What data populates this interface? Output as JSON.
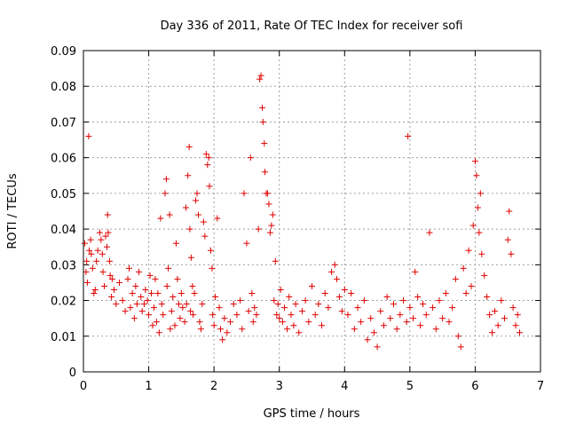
{
  "chart_data": {
    "type": "scatter",
    "title": "Day 336 of 2011, Rate Of TEC Index for receiver sofi",
    "xlabel": "GPS time / hours",
    "ylabel": "ROTI / TECUs",
    "xlim": [
      0,
      7
    ],
    "ylim": [
      0,
      0.09
    ],
    "grid": true,
    "x_ticks": [
      0,
      1,
      2,
      3,
      4,
      5,
      6,
      7
    ],
    "x_tick_labels": [
      "0",
      "1",
      "2",
      "3",
      "4",
      "5",
      "6",
      "7"
    ],
    "y_ticks": [
      0,
      0.01,
      0.02,
      0.03,
      0.04,
      0.05,
      0.06,
      0.07,
      0.08,
      0.09
    ],
    "y_tick_labels": [
      "0",
      "0.01",
      "0.02",
      "0.03",
      "0.04",
      "0.05",
      "0.06",
      "0.07",
      "0.08",
      "0.09"
    ],
    "marker": "+",
    "color": "#e00000",
    "series": [
      {
        "name": "ROTI",
        "points": [
          [
            0.02,
            0.036
          ],
          [
            0.04,
            0.028
          ],
          [
            0.05,
            0.031
          ],
          [
            0.06,
            0.025
          ],
          [
            0.08,
            0.066
          ],
          [
            0.09,
            0.034
          ],
          [
            0.11,
            0.037
          ],
          [
            0.12,
            0.033
          ],
          [
            0.14,
            0.029
          ],
          [
            0.16,
            0.022
          ],
          [
            0.18,
            0.023
          ],
          [
            0.2,
            0.031
          ],
          [
            0.22,
            0.034
          ],
          [
            0.25,
            0.039
          ],
          [
            0.27,
            0.037
          ],
          [
            0.29,
            0.033
          ],
          [
            0.3,
            0.028
          ],
          [
            0.32,
            0.024
          ],
          [
            0.34,
            0.038
          ],
          [
            0.36,
            0.035
          ],
          [
            0.37,
            0.044
          ],
          [
            0.38,
            0.039
          ],
          [
            0.4,
            0.031
          ],
          [
            0.41,
            0.027
          ],
          [
            0.43,
            0.021
          ],
          [
            0.44,
            0.026
          ],
          [
            0.47,
            0.023
          ],
          [
            0.5,
            0.019
          ],
          [
            0.55,
            0.025
          ],
          [
            0.6,
            0.02
          ],
          [
            0.64,
            0.017
          ],
          [
            0.68,
            0.026
          ],
          [
            0.7,
            0.029
          ],
          [
            0.72,
            0.018
          ],
          [
            0.75,
            0.022
          ],
          [
            0.78,
            0.015
          ],
          [
            0.8,
            0.024
          ],
          [
            0.82,
            0.019
          ],
          [
            0.85,
            0.028
          ],
          [
            0.88,
            0.021
          ],
          [
            0.9,
            0.017
          ],
          [
            0.93,
            0.019
          ],
          [
            0.95,
            0.023
          ],
          [
            0.98,
            0.02
          ],
          [
            1.0,
            0.016
          ],
          [
            1.02,
            0.027
          ],
          [
            1.04,
            0.022
          ],
          [
            1.06,
            0.013
          ],
          [
            1.08,
            0.018
          ],
          [
            1.1,
            0.026
          ],
          [
            1.12,
            0.014
          ],
          [
            1.14,
            0.022
          ],
          [
            1.16,
            0.011
          ],
          [
            1.18,
            0.043
          ],
          [
            1.2,
            0.019
          ],
          [
            1.22,
            0.016
          ],
          [
            1.25,
            0.05
          ],
          [
            1.27,
            0.054
          ],
          [
            1.28,
            0.024
          ],
          [
            1.3,
            0.029
          ],
          [
            1.32,
            0.044
          ],
          [
            1.33,
            0.012
          ],
          [
            1.35,
            0.017
          ],
          [
            1.37,
            0.021
          ],
          [
            1.4,
            0.013
          ],
          [
            1.42,
            0.036
          ],
          [
            1.44,
            0.026
          ],
          [
            1.46,
            0.019
          ],
          [
            1.48,
            0.015
          ],
          [
            1.5,
            0.022
          ],
          [
            1.52,
            0.018
          ],
          [
            1.55,
            0.014
          ],
          [
            1.57,
            0.046
          ],
          [
            1.58,
            0.019
          ],
          [
            1.6,
            0.055
          ],
          [
            1.62,
            0.063
          ],
          [
            1.63,
            0.04
          ],
          [
            1.64,
            0.017
          ],
          [
            1.65,
            0.032
          ],
          [
            1.67,
            0.024
          ],
          [
            1.68,
            0.016
          ],
          [
            1.7,
            0.022
          ],
          [
            1.72,
            0.048
          ],
          [
            1.74,
            0.05
          ],
          [
            1.76,
            0.044
          ],
          [
            1.78,
            0.014
          ],
          [
            1.8,
            0.012
          ],
          [
            1.82,
            0.019
          ],
          [
            1.84,
            0.042
          ],
          [
            1.86,
            0.038
          ],
          [
            1.88,
            0.061
          ],
          [
            1.9,
            0.058
          ],
          [
            1.92,
            0.06
          ],
          [
            1.93,
            0.052
          ],
          [
            1.95,
            0.034
          ],
          [
            1.97,
            0.029
          ],
          [
            1.98,
            0.016
          ],
          [
            2.0,
            0.013
          ],
          [
            2.02,
            0.021
          ],
          [
            2.05,
            0.043
          ],
          [
            2.08,
            0.018
          ],
          [
            2.1,
            0.012
          ],
          [
            2.13,
            0.009
          ],
          [
            2.16,
            0.015
          ],
          [
            2.2,
            0.011
          ],
          [
            2.25,
            0.014
          ],
          [
            2.3,
            0.019
          ],
          [
            2.35,
            0.016
          ],
          [
            2.4,
            0.02
          ],
          [
            2.43,
            0.012
          ],
          [
            2.46,
            0.05
          ],
          [
            2.5,
            0.036
          ],
          [
            2.53,
            0.017
          ],
          [
            2.56,
            0.06
          ],
          [
            2.58,
            0.022
          ],
          [
            2.6,
            0.014
          ],
          [
            2.62,
            0.018
          ],
          [
            2.65,
            0.016
          ],
          [
            2.68,
            0.04
          ],
          [
            2.7,
            0.082
          ],
          [
            2.72,
            0.083
          ],
          [
            2.74,
            0.074
          ],
          [
            2.75,
            0.07
          ],
          [
            2.77,
            0.064
          ],
          [
            2.78,
            0.056
          ],
          [
            2.8,
            0.05
          ],
          [
            2.82,
            0.05
          ],
          [
            2.84,
            0.047
          ],
          [
            2.86,
            0.039
          ],
          [
            2.88,
            0.041
          ],
          [
            2.9,
            0.044
          ],
          [
            2.92,
            0.02
          ],
          [
            2.94,
            0.031
          ],
          [
            2.96,
            0.016
          ],
          [
            2.98,
            0.019
          ],
          [
            3.0,
            0.015
          ],
          [
            3.02,
            0.023
          ],
          [
            3.05,
            0.014
          ],
          [
            3.08,
            0.018
          ],
          [
            3.12,
            0.012
          ],
          [
            3.15,
            0.021
          ],
          [
            3.18,
            0.016
          ],
          [
            3.22,
            0.013
          ],
          [
            3.25,
            0.019
          ],
          [
            3.3,
            0.011
          ],
          [
            3.35,
            0.017
          ],
          [
            3.4,
            0.02
          ],
          [
            3.45,
            0.014
          ],
          [
            3.5,
            0.024
          ],
          [
            3.55,
            0.016
          ],
          [
            3.6,
            0.019
          ],
          [
            3.65,
            0.013
          ],
          [
            3.7,
            0.022
          ],
          [
            3.75,
            0.018
          ],
          [
            3.8,
            0.028
          ],
          [
            3.85,
            0.03
          ],
          [
            3.88,
            0.026
          ],
          [
            3.92,
            0.021
          ],
          [
            3.96,
            0.017
          ],
          [
            4.0,
            0.023
          ],
          [
            4.05,
            0.016
          ],
          [
            4.1,
            0.022
          ],
          [
            4.15,
            0.012
          ],
          [
            4.2,
            0.018
          ],
          [
            4.25,
            0.014
          ],
          [
            4.3,
            0.02
          ],
          [
            4.35,
            0.009
          ],
          [
            4.4,
            0.015
          ],
          [
            4.45,
            0.011
          ],
          [
            4.5,
            0.007
          ],
          [
            4.55,
            0.017
          ],
          [
            4.6,
            0.013
          ],
          [
            4.65,
            0.021
          ],
          [
            4.7,
            0.015
          ],
          [
            4.75,
            0.019
          ],
          [
            4.8,
            0.012
          ],
          [
            4.85,
            0.016
          ],
          [
            4.9,
            0.02
          ],
          [
            4.95,
            0.014
          ],
          [
            4.97,
            0.066
          ],
          [
            5.0,
            0.018
          ],
          [
            5.05,
            0.015
          ],
          [
            5.08,
            0.028
          ],
          [
            5.12,
            0.021
          ],
          [
            5.16,
            0.013
          ],
          [
            5.2,
            0.019
          ],
          [
            5.25,
            0.016
          ],
          [
            5.3,
            0.039
          ],
          [
            5.35,
            0.018
          ],
          [
            5.4,
            0.012
          ],
          [
            5.45,
            0.02
          ],
          [
            5.5,
            0.015
          ],
          [
            5.55,
            0.022
          ],
          [
            5.6,
            0.014
          ],
          [
            5.65,
            0.018
          ],
          [
            5.7,
            0.026
          ],
          [
            5.74,
            0.01
          ],
          [
            5.78,
            0.007
          ],
          [
            5.82,
            0.029
          ],
          [
            5.86,
            0.022
          ],
          [
            5.9,
            0.034
          ],
          [
            5.94,
            0.024
          ],
          [
            5.97,
            0.041
          ],
          [
            6.0,
            0.059
          ],
          [
            6.02,
            0.055
          ],
          [
            6.04,
            0.046
          ],
          [
            6.06,
            0.039
          ],
          [
            6.08,
            0.05
          ],
          [
            6.1,
            0.033
          ],
          [
            6.14,
            0.027
          ],
          [
            6.18,
            0.021
          ],
          [
            6.22,
            0.016
          ],
          [
            6.26,
            0.011
          ],
          [
            6.3,
            0.017
          ],
          [
            6.35,
            0.013
          ],
          [
            6.4,
            0.02
          ],
          [
            6.45,
            0.015
          ],
          [
            6.5,
            0.037
          ],
          [
            6.52,
            0.045
          ],
          [
            6.55,
            0.033
          ],
          [
            6.58,
            0.018
          ],
          [
            6.62,
            0.013
          ],
          [
            6.65,
            0.016
          ],
          [
            6.68,
            0.011
          ]
        ]
      }
    ]
  }
}
